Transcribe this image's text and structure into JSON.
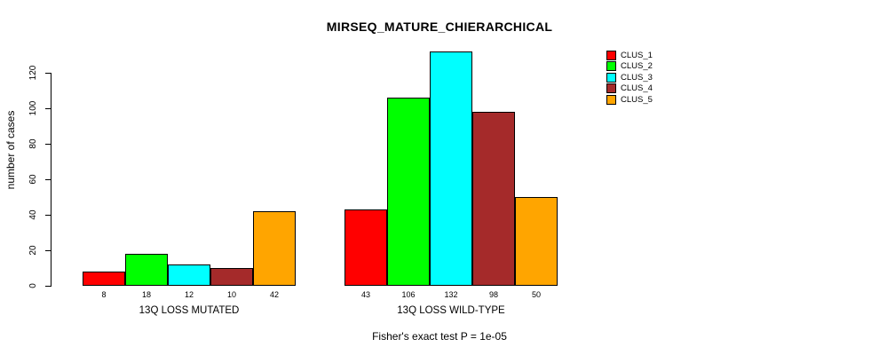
{
  "title": "MIRSEQ_MATURE_CHIERARCHICAL",
  "subtitle": "Fisher's exact test P = 1e-05",
  "ylabel": "number of cases",
  "chart_data": {
    "type": "bar",
    "categories": [
      "13Q LOSS MUTATED",
      "13Q LOSS WILD-TYPE"
    ],
    "series": [
      {
        "name": "CLUS_1",
        "color": "#FF0000",
        "values": [
          8,
          43
        ]
      },
      {
        "name": "CLUS_2",
        "color": "#00FF00",
        "values": [
          18,
          106
        ]
      },
      {
        "name": "CLUS_3",
        "color": "#00FFFF",
        "values": [
          12,
          132
        ]
      },
      {
        "name": "CLUS_4",
        "color": "#A52A2A",
        "values": [
          10,
          98
        ]
      },
      {
        "name": "CLUS_5",
        "color": "#FFA500",
        "values": [
          42,
          50
        ]
      }
    ],
    "yticks": [
      0,
      20,
      40,
      60,
      80,
      100,
      120
    ],
    "ylim": [
      0,
      132
    ],
    "grid": false,
    "legend_position": "top-right",
    "bar_value_labels": true
  }
}
